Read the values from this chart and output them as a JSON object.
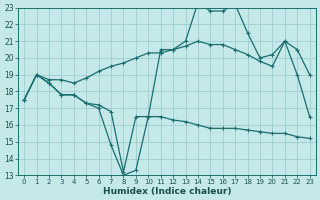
{
  "xlabel": "Humidex (Indice chaleur)",
  "bg_color": "#c5e8e8",
  "grid_color": "#9ecece",
  "line_color": "#1a6e6e",
  "xlim": [
    -0.5,
    23.5
  ],
  "ylim": [
    13,
    23
  ],
  "x_ticks": [
    0,
    1,
    2,
    3,
    4,
    5,
    6,
    7,
    8,
    9,
    10,
    11,
    12,
    13,
    14,
    15,
    16,
    17,
    18,
    19,
    20,
    21,
    22,
    23
  ],
  "y_ticks": [
    13,
    14,
    15,
    16,
    17,
    18,
    19,
    20,
    21,
    22,
    23
  ],
  "curve_bottom_x": [
    0,
    1,
    2,
    3,
    4,
    5,
    6,
    7,
    8,
    9,
    10,
    11,
    12,
    13,
    14,
    15,
    16,
    17,
    18,
    19,
    20,
    21,
    22,
    23
  ],
  "curve_bottom_y": [
    17.5,
    19.0,
    18.5,
    17.8,
    17.8,
    17.3,
    17.2,
    16.8,
    13.2,
    16.5,
    16.5,
    16.5,
    16.3,
    16.2,
    16.0,
    15.8,
    15.8,
    15.8,
    15.7,
    15.6,
    15.5,
    15.5,
    15.3,
    15.2
  ],
  "curve_mid_x": [
    0,
    1,
    2,
    3,
    4,
    5,
    6,
    7,
    8,
    9,
    10,
    11,
    12,
    13,
    14,
    15,
    16,
    17,
    18,
    19,
    20,
    21,
    22,
    23
  ],
  "curve_mid_y": [
    17.5,
    19.0,
    18.7,
    18.7,
    18.5,
    18.8,
    19.2,
    19.5,
    19.7,
    20.0,
    20.3,
    20.3,
    20.5,
    20.7,
    21.0,
    20.8,
    20.8,
    20.5,
    20.2,
    19.8,
    19.5,
    21.0,
    20.5,
    19.0
  ],
  "curve_top_x": [
    0,
    1,
    2,
    3,
    4,
    5,
    6,
    7,
    8,
    9,
    10,
    11,
    12,
    13,
    14,
    15,
    16,
    17,
    18,
    19,
    20,
    21,
    22,
    23
  ],
  "curve_top_y": [
    17.5,
    19.0,
    18.5,
    17.8,
    17.8,
    17.3,
    17.0,
    14.8,
    13.0,
    13.3,
    16.5,
    20.5,
    20.5,
    21.0,
    23.3,
    22.8,
    22.8,
    23.2,
    21.5,
    20.0,
    20.2,
    21.0,
    19.0,
    16.5
  ]
}
